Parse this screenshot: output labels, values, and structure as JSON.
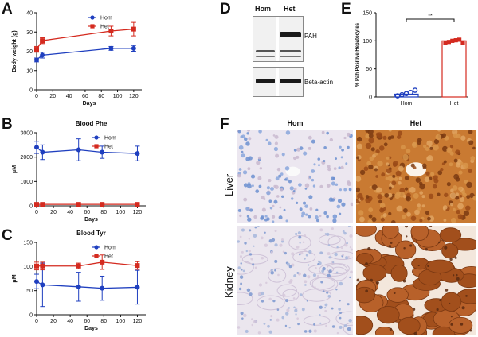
{
  "panels": {
    "a": "A",
    "b": "B",
    "c": "C",
    "d": "D",
    "e": "E",
    "f": "F"
  },
  "colors": {
    "hom": "#1f3fbf",
    "het": "#d42a1f",
    "ihc_het": "#b5581f",
    "ihc_hom": "#5a82c8"
  },
  "chart_data": [
    {
      "id": "A",
      "type": "line",
      "title": "",
      "xlabel": "Days",
      "ylabel": "Body weight (g)",
      "xlim": [
        0,
        130
      ],
      "ylim": [
        0,
        40
      ],
      "xticks": [
        "0",
        "20",
        "40",
        "60",
        "80",
        "100",
        "120"
      ],
      "yticks": [
        "0",
        "10",
        "20",
        "30",
        "40"
      ],
      "legend_position": "top-right",
      "series": [
        {
          "name": "Hom",
          "x": [
            0,
            7,
            92,
            120
          ],
          "y": [
            15.5,
            18,
            21.5,
            21.5
          ],
          "err": [
            1,
            1.5,
            1,
            1.5
          ]
        },
        {
          "name": "Het",
          "x": [
            0,
            7,
            92,
            120
          ],
          "y": [
            21,
            25.5,
            30.5,
            31.5
          ],
          "err": [
            1.5,
            1.5,
            2.5,
            3.5
          ]
        }
      ]
    },
    {
      "id": "B",
      "type": "line",
      "title": "Blood Phe",
      "xlabel": "Days",
      "ylabel": "μM",
      "xlim": [
        0,
        130
      ],
      "ylim": [
        0,
        3000
      ],
      "xticks": [
        "0",
        "20",
        "40",
        "60",
        "80",
        "100",
        "120"
      ],
      "yticks": [
        "0",
        "1000",
        "2000",
        "3000"
      ],
      "legend_position": "top-right",
      "series": [
        {
          "name": "Hom",
          "x": [
            0,
            7,
            50,
            78,
            120
          ],
          "y": [
            2400,
            2200,
            2300,
            2200,
            2150
          ],
          "err": [
            250,
            300,
            450,
            250,
            300
          ]
        },
        {
          "name": "Het",
          "x": [
            0,
            7,
            50,
            78,
            120
          ],
          "y": [
            60,
            60,
            60,
            60,
            60
          ],
          "err": [
            10,
            10,
            10,
            10,
            10
          ]
        }
      ]
    },
    {
      "id": "C",
      "type": "line",
      "title": "Blood Tyr",
      "xlabel": "Days",
      "ylabel": "μM",
      "xlim": [
        0,
        130
      ],
      "ylim": [
        0,
        150
      ],
      "xticks": [
        "0",
        "20",
        "40",
        "60",
        "80",
        "100",
        "120"
      ],
      "yticks": [
        "0",
        "50",
        "100",
        "150"
      ],
      "legend_position": "top-right",
      "series": [
        {
          "name": "Hom",
          "x": [
            0,
            7,
            50,
            78,
            120
          ],
          "y": [
            69,
            62,
            58,
            55,
            57
          ],
          "err": [
            15,
            45,
            30,
            25,
            35
          ]
        },
        {
          "name": "Het",
          "x": [
            0,
            7,
            50,
            78,
            120
          ],
          "y": [
            101,
            101,
            101,
            109,
            102
          ],
          "err": [
            8,
            8,
            6,
            15,
            8
          ]
        }
      ]
    },
    {
      "id": "E",
      "type": "bar",
      "title": "",
      "xlabel": "",
      "ylabel": "% Pah Positive Hepatocytes",
      "categories": [
        "Hom",
        "Het"
      ],
      "values": [
        5,
        100
      ],
      "ylim": [
        0,
        150
      ],
      "yticks": [
        "0",
        "50",
        "100",
        "150"
      ],
      "points": {
        "Hom": [
          2,
          4,
          6,
          8,
          12
        ],
        "Het": [
          96,
          98,
          100,
          101,
          102,
          97
        ]
      },
      "significance": "**"
    }
  ],
  "blot": {
    "lane_labels": [
      "Hom",
      "Het"
    ],
    "labels": [
      "PAH",
      "Beta-actin"
    ]
  },
  "ihc": {
    "columns": [
      "Hom",
      "Het"
    ],
    "rows": [
      "Liver",
      "Kidney"
    ]
  }
}
